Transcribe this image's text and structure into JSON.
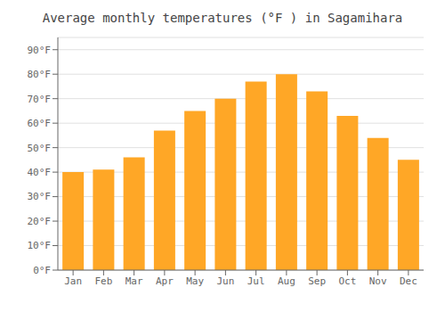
{
  "chart_data": {
    "type": "bar",
    "title": "Average monthly temperatures (°F ) in Sagamihara",
    "categories": [
      "Jan",
      "Feb",
      "Mar",
      "Apr",
      "May",
      "Jun",
      "Jul",
      "Aug",
      "Sep",
      "Oct",
      "Nov",
      "Dec"
    ],
    "values": [
      40,
      41,
      46,
      57,
      65,
      70,
      77,
      80,
      73,
      63,
      54,
      45
    ],
    "color": "#FFA726",
    "ylim": [
      0,
      95
    ],
    "yticks": [
      {
        "value": 0,
        "label": "0°F"
      },
      {
        "value": 10,
        "label": "10°F"
      },
      {
        "value": 20,
        "label": "20°F"
      },
      {
        "value": 30,
        "label": "30°F"
      },
      {
        "value": 40,
        "label": "40°F"
      },
      {
        "value": 50,
        "label": "50°F"
      },
      {
        "value": 60,
        "label": "60°F"
      },
      {
        "value": 70,
        "label": "70°F"
      },
      {
        "value": 80,
        "label": "80°F"
      },
      {
        "value": 90,
        "label": "90°F"
      }
    ],
    "grid": true
  }
}
